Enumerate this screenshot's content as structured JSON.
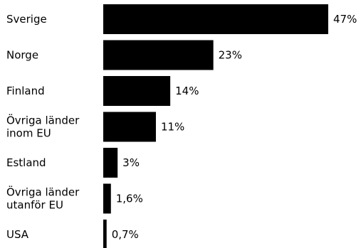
{
  "chart_data": {
    "type": "bar",
    "orientation": "horizontal",
    "title": "",
    "xlabel": "",
    "ylabel": "",
    "bar_color": "#000000",
    "grid": false,
    "legend": "none",
    "xlim": [
      0,
      47
    ],
    "categories": [
      [
        "Sverige"
      ],
      [
        "Norge"
      ],
      [
        "Finland"
      ],
      [
        "Övriga länder",
        "inom EU"
      ],
      [
        "Estland"
      ],
      [
        "Övriga länder",
        "utanför EU"
      ],
      [
        "USA"
      ]
    ],
    "values": [
      47,
      23,
      14,
      11,
      3,
      1.6,
      0.7
    ],
    "data_labels": [
      "47%",
      "23%",
      "14%",
      "11%",
      "3%",
      "1,6%",
      "0,7%"
    ]
  }
}
